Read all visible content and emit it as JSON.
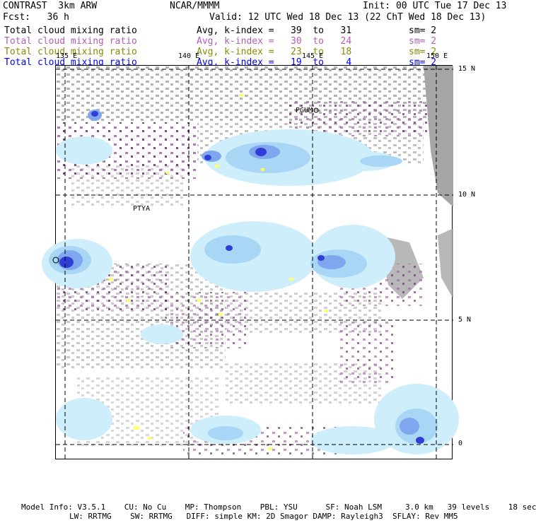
{
  "header": {
    "title": "CONTRAST  3km ARW",
    "center": "NCAR/MMMM",
    "init": "Init: 00 UTC Tue 17 Dec 13",
    "fcst": "Fcst:   36 h",
    "valid": "Valid: 12 UTC Wed 18 Dec 13 (22 ChT Wed 18 Dec 13)"
  },
  "legend": [
    {
      "field": "Total cloud mixing ratio",
      "range": "Avg, k-index =   39  to   31",
      "sm": "sm= 2",
      "color": "#000000"
    },
    {
      "field": "Total cloud mixing ratio",
      "range": "Avg, k-index =   30  to   24",
      "sm": "sm= 2",
      "color": "#b05fb8"
    },
    {
      "field": "Total cloud mixing ratio",
      "range": "Avg, k-index =   23  to   18",
      "sm": "sm= 2",
      "color": "#8a8a00"
    },
    {
      "field": "Total cloud mixing ratio",
      "range": "Avg, k-index =   19  to    4",
      "sm": "sm= 2",
      "color": "#0000ff"
    }
  ],
  "map": {
    "lon_labels": [
      "135 E",
      "140 E",
      "145 E",
      "150 E"
    ],
    "lat_labels": [
      "15 N",
      "10 N",
      "5 N",
      "0"
    ],
    "stations": [
      "PGUM",
      "PTYA"
    ]
  },
  "footer": {
    "line1": "Model Info: V3.5.1    CU: No Cu    MP: Thompson    PBL: YSU      SF: Noah LSM     3.0 km   39 levels    18 sec",
    "line2": "LW: RRTMG    SW: RRTMG   DIFF: simple KM: 2D Smagor DAMP: Rayleigh3  SFLAY: Rev MM5"
  },
  "colors": {
    "light_cyan": "#cdeefa",
    "light_blue": "#a9d6f5",
    "blue_mid": "#7fa6ee",
    "blue_dark": "#2f3fd6",
    "gray_cloud": "#a6a6a6",
    "purple_cloud": "#9a5aa0",
    "dark_purple": "#6a1a6a",
    "yellow_cloud": "#ffff66"
  }
}
